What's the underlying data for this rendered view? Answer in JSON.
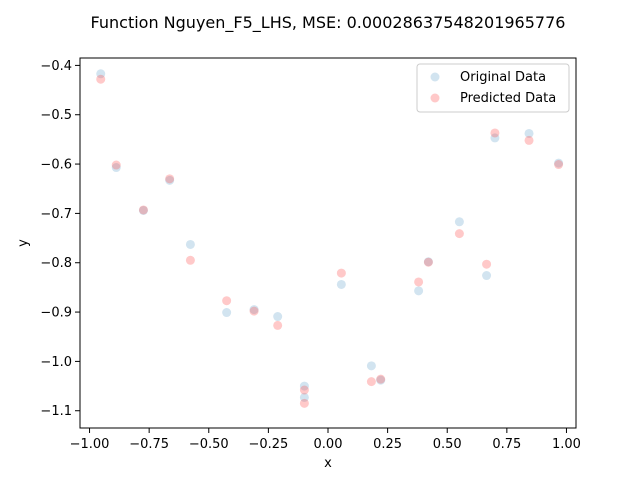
{
  "chart_data": {
    "type": "scatter",
    "title": "Function Nguyen_F5_LHS, MSE: 0.00028637548201965776",
    "xlabel": "x",
    "ylabel": "y",
    "xlim": [
      -1.04,
      1.04
    ],
    "ylim": [
      -1.135,
      -0.385
    ],
    "xticks": [
      -1.0,
      -0.75,
      -0.5,
      -0.25,
      0.0,
      0.25,
      0.5,
      0.75,
      1.0
    ],
    "xtick_labels": [
      "−1.00",
      "−0.75",
      "−0.50",
      "−0.25",
      "0.00",
      "0.25",
      "0.50",
      "0.75",
      "1.00"
    ],
    "yticks": [
      -1.1,
      -1.0,
      -0.9,
      -0.8,
      -0.7,
      -0.6,
      -0.5,
      -0.4
    ],
    "ytick_labels": [
      "−1.1",
      "−1.0",
      "−0.9",
      "−0.8",
      "−0.7",
      "−0.6",
      "−0.5",
      "−0.4"
    ],
    "grid": false,
    "legend_position": "top-right",
    "series": [
      {
        "name": "Original Data",
        "color": "#1f77b4",
        "alpha": 0.2,
        "points": [
          [
            -0.953,
            -0.417
          ],
          [
            -0.888,
            -0.607
          ],
          [
            -0.774,
            -0.694
          ],
          [
            -0.664,
            -0.633
          ],
          [
            -0.577,
            -0.763
          ],
          [
            -0.425,
            -0.901
          ],
          [
            -0.31,
            -0.895
          ],
          [
            -0.211,
            -0.909
          ],
          [
            -0.099,
            -1.05
          ],
          [
            -0.099,
            -1.073
          ],
          [
            0.056,
            -0.844
          ],
          [
            0.182,
            -1.009
          ],
          [
            0.221,
            -1.038
          ],
          [
            0.38,
            -0.857
          ],
          [
            0.421,
            -0.798
          ],
          [
            0.551,
            -0.717
          ],
          [
            0.665,
            -0.826
          ],
          [
            0.7,
            -0.547
          ],
          [
            0.843,
            -0.538
          ],
          [
            0.967,
            -0.598
          ]
        ]
      },
      {
        "name": "Predicted Data",
        "color": "#ff4d4d",
        "alpha": 0.3,
        "points": [
          [
            -0.953,
            -0.428
          ],
          [
            -0.888,
            -0.602
          ],
          [
            -0.774,
            -0.693
          ],
          [
            -0.664,
            -0.63
          ],
          [
            -0.577,
            -0.795
          ],
          [
            -0.425,
            -0.877
          ],
          [
            -0.31,
            -0.898
          ],
          [
            -0.211,
            -0.927
          ],
          [
            -0.099,
            -1.058
          ],
          [
            -0.099,
            -1.085
          ],
          [
            0.056,
            -0.821
          ],
          [
            0.182,
            -1.041
          ],
          [
            0.221,
            -1.036
          ],
          [
            0.38,
            -0.839
          ],
          [
            0.421,
            -0.799
          ],
          [
            0.551,
            -0.741
          ],
          [
            0.665,
            -0.803
          ],
          [
            0.7,
            -0.537
          ],
          [
            0.843,
            -0.552
          ],
          [
            0.967,
            -0.601
          ]
        ]
      }
    ]
  }
}
